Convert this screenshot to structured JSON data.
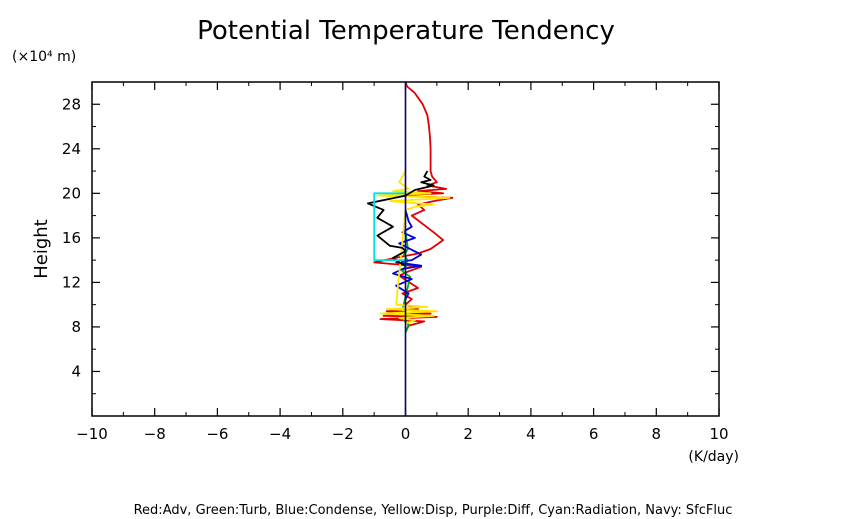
{
  "chart_data": {
    "type": "line",
    "title": "Potential Temperature Tendency",
    "xlabel": "(K/day)",
    "ylabel": "Height",
    "yunit": "(×10⁴ m)",
    "xlim": [
      -10,
      10
    ],
    "ylim": [
      0,
      30
    ],
    "xticks": [
      -10,
      -8,
      -6,
      -4,
      -2,
      0,
      2,
      4,
      6,
      8,
      10
    ],
    "yticks": [
      4,
      8,
      12,
      16,
      20,
      24,
      28
    ],
    "grid": false,
    "legend_text": "Red:Adv, Green:Turb, Blue:Condense, Yellow:Disp, Purple:Diff, Cyan:Radiation, Navy: SfcFluc",
    "series": [
      {
        "name": "Red:Adv",
        "color": "#e00000",
        "x": [
          0,
          0.05,
          0.3,
          0.55,
          0.7,
          0.75,
          0.78,
          0.8,
          0.8,
          0.8,
          0.85,
          1.0,
          0.7,
          1.3,
          0.4,
          1.2,
          -0.6,
          1.5,
          0.9,
          0.4,
          0.6,
          0.2,
          0.9,
          1.2,
          0.8,
          0.4,
          -0.5,
          -1.0,
          -0.2,
          0.5,
          0.1,
          -0.2,
          0.4,
          -0.1,
          0.2,
          0.0,
          0.4,
          -0.6,
          0.8,
          -0.7,
          1.0,
          -0.8,
          0.6,
          0.1,
          0.0
        ],
        "y": [
          30,
          29.6,
          29,
          28,
          27,
          26,
          25,
          24,
          23,
          22,
          21.5,
          21,
          20.7,
          20.4,
          20.2,
          20,
          19.8,
          19.6,
          19.3,
          19,
          18.5,
          18,
          16.5,
          15.8,
          15,
          14.6,
          14.1,
          13.8,
          13.6,
          13.4,
          13,
          12.6,
          11.5,
          11,
          10.5,
          10,
          9.6,
          9.4,
          9.2,
          9.0,
          8.9,
          8.7,
          8.5,
          8.1,
          7.5
        ]
      },
      {
        "name": "Green:Turb",
        "color": "#00b000",
        "x": [
          0,
          0.08,
          -0.05,
          0.06,
          0,
          -0.1,
          0.15,
          -0.1,
          0.1,
          -0.05,
          0.1,
          0
        ],
        "y": [
          16.5,
          15,
          14.5,
          14,
          13.5,
          13,
          12.5,
          9.5,
          9,
          8.6,
          8.2,
          7.5
        ]
      },
      {
        "name": "Blue:Condense",
        "color": "#0000dd",
        "x": [
          0,
          0.05,
          0.1,
          0.2,
          -0.1,
          0.3,
          -0.2,
          0.5,
          0.2,
          -0.3,
          0.5,
          -0.1,
          -0.4,
          0.2,
          -0.3,
          0.1,
          0
        ],
        "y": [
          18.5,
          18,
          17.5,
          17,
          16.5,
          16,
          15.5,
          14.5,
          14,
          13.8,
          13.5,
          13.2,
          12.8,
          12.3,
          11.7,
          11,
          10.5
        ]
      },
      {
        "name": "Yellow:Disp",
        "color": "#ffe600",
        "x": [
          0,
          -0.2,
          0.1,
          -0.4,
          0.8,
          -0.9,
          1.4,
          -0.5,
          0.9,
          0.3,
          0,
          -0.3,
          0.7,
          -0.6,
          1.0,
          -0.8,
          0.9,
          -0.2,
          0.3,
          0
        ],
        "y": [
          22,
          21,
          20.4,
          20.2,
          20.0,
          19.8,
          19.6,
          19.3,
          19.0,
          18.8,
          18.5,
          10.0,
          9.8,
          9.6,
          9.4,
          9.2,
          9.0,
          8.8,
          8.6,
          8.3
        ]
      },
      {
        "name": "Black",
        "color": "#000000",
        "x": [
          0.7,
          0.6,
          0.8,
          0.5,
          0.9,
          0.3,
          0,
          -1.2,
          -0.7,
          -0.9,
          -0.4,
          -0.9,
          -0.5,
          -0.1,
          0,
          -0.4,
          -0.2,
          0
        ],
        "y": [
          22,
          21.5,
          21.2,
          21,
          20.7,
          20.3,
          19.8,
          19.1,
          18.5,
          17.8,
          17,
          16.2,
          15.3,
          15.1,
          14.8,
          14.2,
          13.8,
          13.5
        ]
      },
      {
        "name": "Cyan:Radiation",
        "color": "#00e0e0",
        "x": [
          0,
          -1.0,
          -1.0,
          0,
          0
        ],
        "y": [
          20,
          20,
          14,
          14,
          13.5
        ]
      },
      {
        "name": "Navy: SfcFluc",
        "color": "#000080",
        "x": [
          0,
          0
        ],
        "y": [
          0,
          30
        ]
      }
    ]
  }
}
